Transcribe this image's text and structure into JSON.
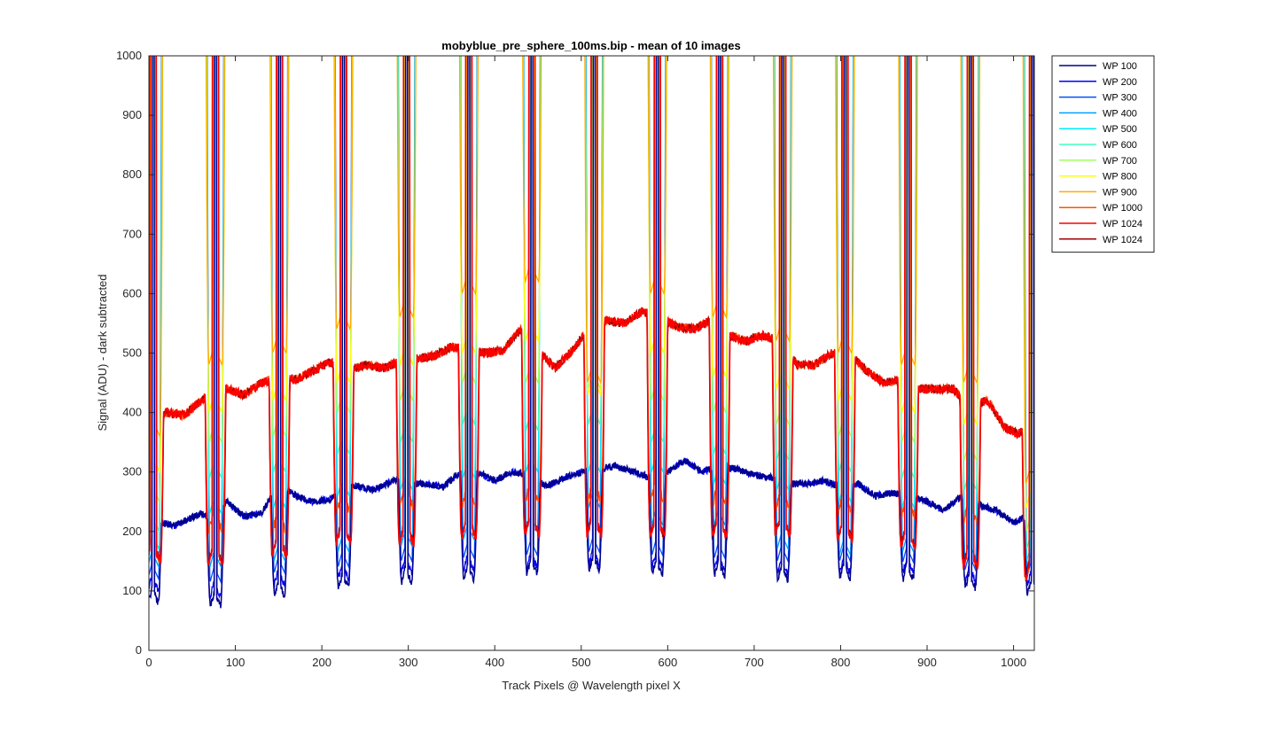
{
  "chart_data": {
    "type": "line",
    "title": "mobyblue_pre_sphere_100ms.bip - mean of 10 images",
    "xlabel": "Track Pixels @ Wavelength pixel X",
    "ylabel": "Signal (ADU) - dark subtracted",
    "xlim": [
      0,
      1024
    ],
    "ylim": [
      0,
      1000
    ],
    "xticks": [
      0,
      100,
      200,
      300,
      400,
      500,
      600,
      700,
      800,
      900,
      1000
    ],
    "yticks": [
      0,
      100,
      200,
      300,
      400,
      500,
      600,
      700,
      800,
      900,
      1000
    ],
    "grid": false,
    "legend_position": "outside-top-right",
    "peak_centers": [
      5,
      77,
      151,
      225,
      298,
      370,
      443,
      515,
      588,
      660,
      733,
      805,
      878,
      950,
      1022
    ],
    "series": [
      {
        "name": "WP 100",
        "color": "#00008f",
        "trough_min": [
          80,
          75,
          92,
          105,
          115,
          120,
          130,
          135,
          128,
          125,
          118,
          122,
          120,
          105,
          95
        ],
        "baseline": {
          "x": [
            10,
            30,
            60,
            75,
            90,
            110,
            130,
            150,
            170,
            190,
            210,
            230,
            260,
            290,
            300,
            320,
            340,
            360,
            380,
            400,
            420,
            440,
            460,
            480,
            500,
            520,
            540,
            560,
            580,
            600,
            620,
            640,
            660,
            680,
            700,
            720,
            740,
            760,
            780,
            800,
            820,
            840,
            860,
            880,
            900,
            920,
            940,
            960,
            980,
            1000,
            1015
          ],
          "y": [
            215,
            210,
            230,
            220,
            250,
            225,
            230,
            280,
            260,
            250,
            255,
            280,
            270,
            290,
            280,
            280,
            275,
            300,
            300,
            285,
            300,
            295,
            275,
            290,
            300,
            305,
            310,
            300,
            290,
            300,
            320,
            300,
            310,
            305,
            295,
            290,
            280,
            280,
            285,
            275,
            280,
            260,
            265,
            260,
            250,
            235,
            260,
            245,
            235,
            215,
            225
          ]
        }
      },
      {
        "name": "WP 200",
        "color": "#0000ff",
        "trough_min": [
          100,
          90,
          110,
          120,
          130,
          135,
          140,
          145,
          140,
          135,
          130,
          130,
          130,
          115,
          110
        ]
      },
      {
        "name": "WP 300",
        "color": "#0050ff",
        "trough_min": [
          120,
          115,
          130,
          140,
          150,
          155,
          160,
          165,
          160,
          155,
          150,
          150,
          148,
          135,
          125
        ]
      },
      {
        "name": "WP 400",
        "color": "#00a0ff",
        "trough_min": [
          140,
          140,
          150,
          165,
          175,
          185,
          200,
          240,
          210,
          210,
          170,
          160,
          165,
          155,
          140
        ]
      },
      {
        "name": "WP 500",
        "color": "#00eeff",
        "trough_min": [
          170,
          230,
          240,
          260,
          270,
          290,
          300,
          300,
          300,
          280,
          270,
          250,
          240,
          220,
          150
        ]
      },
      {
        "name": "WP 600",
        "color": "#40ffbf",
        "trough_min": [
          200,
          290,
          300,
          330,
          350,
          380,
          370,
          380,
          350,
          330,
          320,
          300,
          290,
          270,
          170
        ]
      },
      {
        "name": "WP 700",
        "color": "#a0ff60",
        "trough_min": [
          250,
          350,
          360,
          400,
          420,
          450,
          450,
          440,
          420,
          400,
          380,
          360,
          350,
          320,
          200
        ]
      },
      {
        "name": "WP 800",
        "color": "#ffff00",
        "trough_min": [
          300,
          400,
          420,
          450,
          480,
          500,
          520,
          430,
          500,
          460,
          440,
          420,
          400,
          380,
          240
        ]
      },
      {
        "name": "WP 900",
        "color": "#ffaa00",
        "trough_min": [
          360,
          480,
          500,
          540,
          560,
          600,
          620,
          450,
          600,
          560,
          520,
          500,
          480,
          450,
          280
        ]
      },
      {
        "name": "WP 1000",
        "color": "#ff5000",
        "trough_min": [
          150,
          200,
          200,
          230,
          240,
          240,
          250,
          250,
          250,
          245,
          240,
          230,
          225,
          215,
          120
        ]
      },
      {
        "name": "WP 1024",
        "color": "#ff0000",
        "trough_min": [
          150,
          145,
          160,
          180,
          180,
          190,
          195,
          195,
          190,
          190,
          195,
          185,
          175,
          140,
          120
        ],
        "baseline": {
          "x": [
            10,
            20,
            40,
            60,
            75,
            90,
            110,
            130,
            150,
            170,
            190,
            210,
            230,
            250,
            270,
            290,
            310,
            330,
            350,
            370,
            390,
            410,
            430,
            450,
            470,
            490,
            510,
            530,
            550,
            570,
            590,
            610,
            630,
            650,
            670,
            690,
            710,
            730,
            750,
            770,
            790,
            810,
            830,
            850,
            870,
            890,
            910,
            930,
            950,
            970,
            990,
            1005,
            1015
          ],
          "y": [
            390,
            400,
            395,
            420,
            435,
            440,
            430,
            450,
            460,
            455,
            470,
            485,
            470,
            480,
            475,
            485,
            490,
            495,
            510,
            505,
            500,
            505,
            540,
            505,
            475,
            505,
            545,
            555,
            550,
            570,
            560,
            545,
            540,
            555,
            530,
            520,
            530,
            520,
            480,
            480,
            500,
            500,
            470,
            450,
            455,
            440,
            440,
            440,
            410,
            420,
            375,
            365,
            370
          ]
        }
      },
      {
        "name": "WP 1024",
        "color": "#a00000",
        "trough_min": [
          150,
          145,
          160,
          180,
          180,
          190,
          195,
          195,
          190,
          190,
          195,
          185,
          175,
          140,
          120
        ]
      }
    ]
  }
}
